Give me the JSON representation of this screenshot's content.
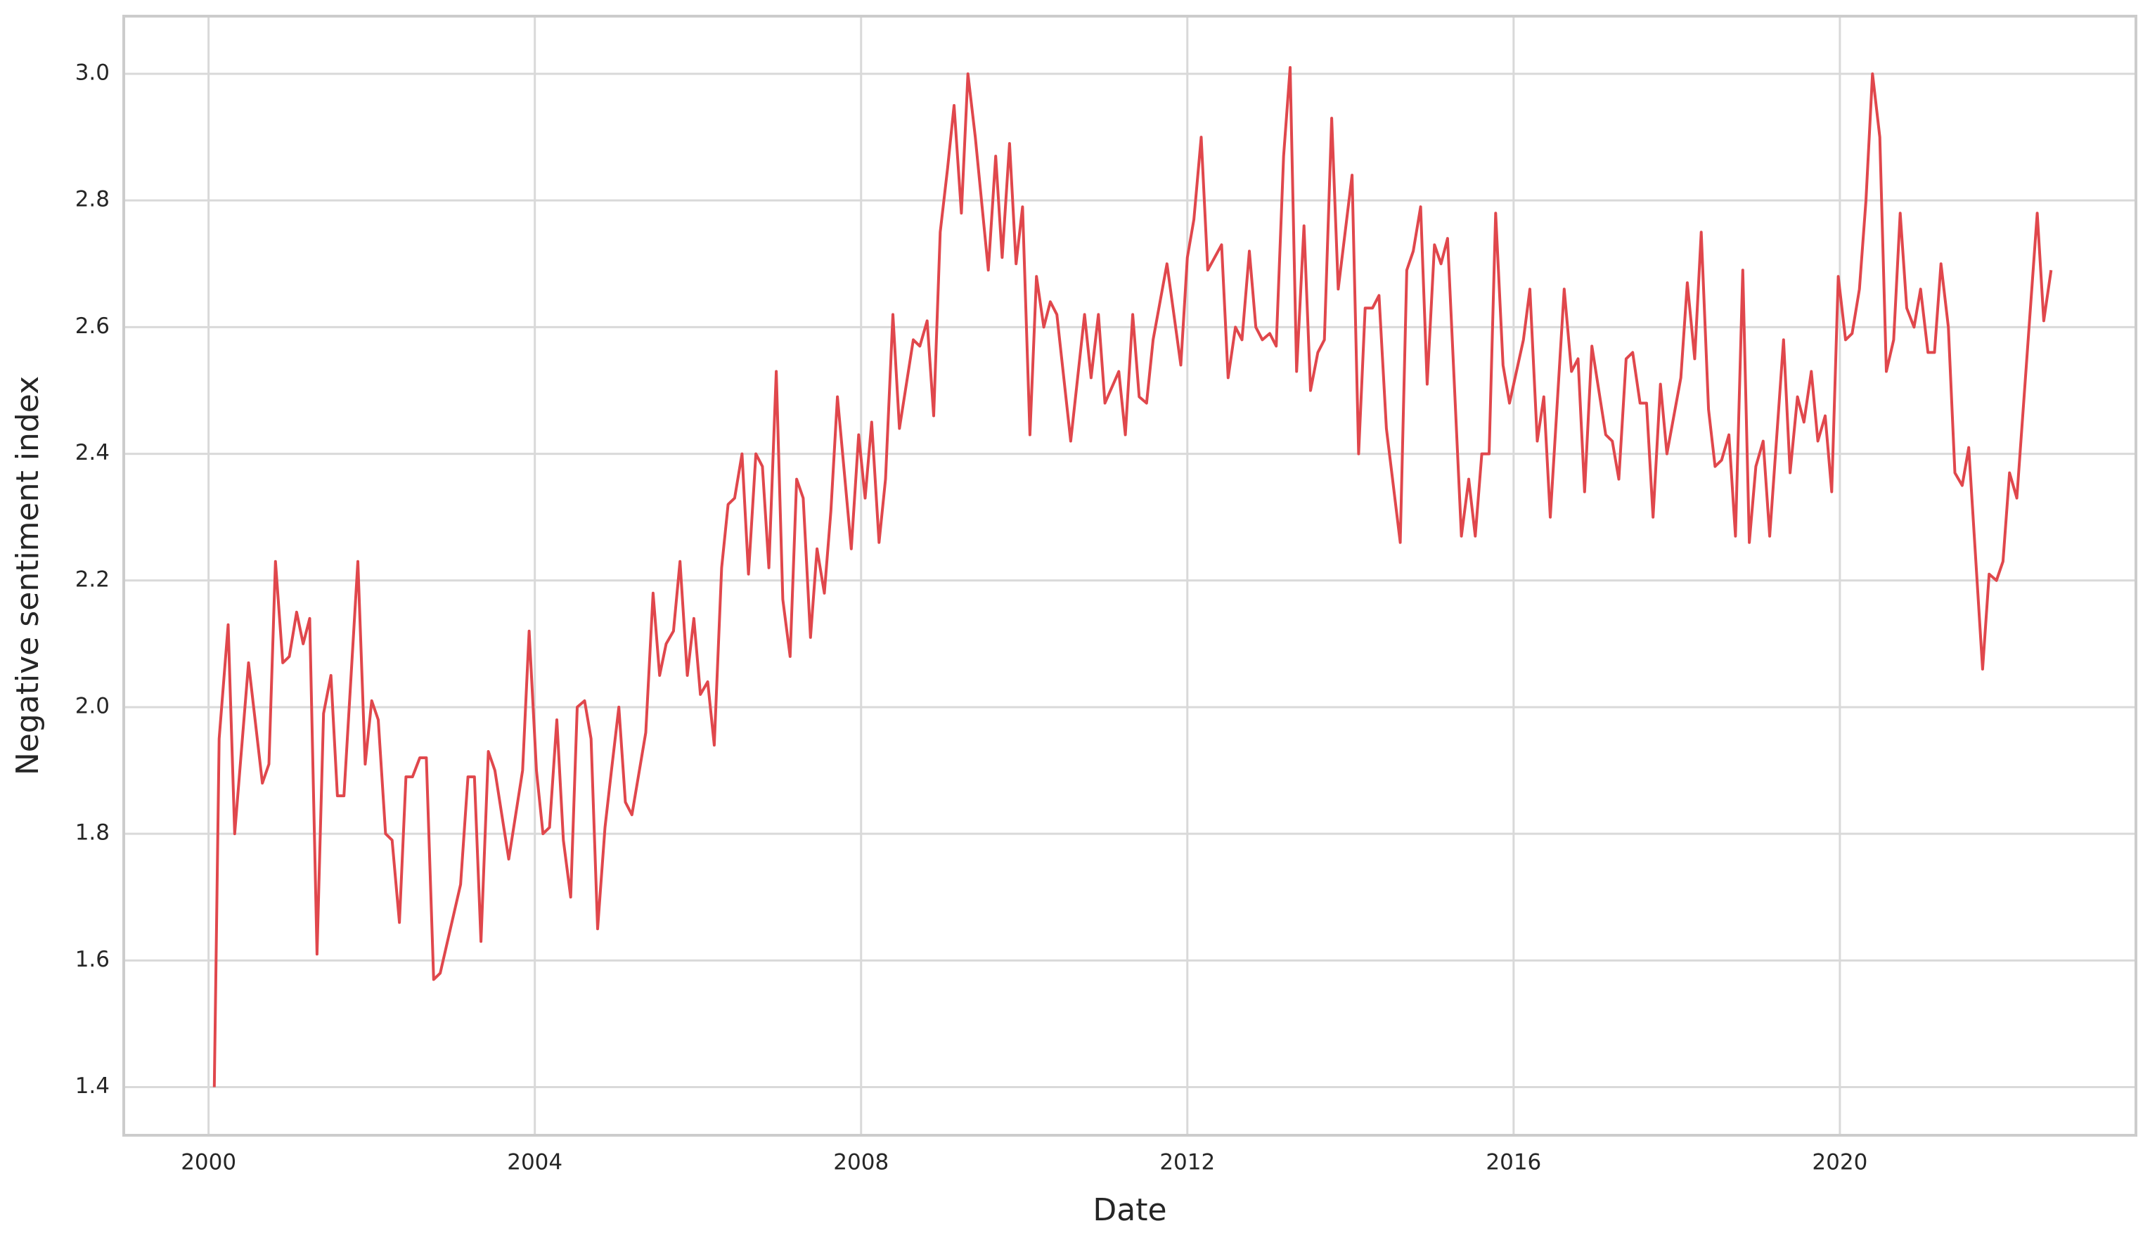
{
  "chart_data": {
    "type": "line",
    "x_label": "Date",
    "y_label": "Negative sentiment index",
    "color": "#e0474c",
    "grid": true,
    "xlim": [
      1998.96,
      2023.63
    ],
    "ylim": [
      1.324,
      3.091
    ],
    "xticks": [
      2000,
      2004,
      2008,
      2012,
      2016,
      2020
    ],
    "yticks": [
      1.4,
      1.6,
      1.8,
      {
        "value": 2.0,
        "label": "2.0"
      },
      2.2,
      2.4,
      2.6,
      2.8,
      {
        "value": 3.0,
        "label": "3.0"
      }
    ],
    "x": [
      2000.07,
      2000.13,
      2000.24,
      2000.32,
      2000.49,
      2000.66,
      2000.74,
      2000.82,
      2000.91,
      2000.99,
      2001.08,
      2001.16,
      2001.24,
      2001.33,
      2001.41,
      2001.5,
      2001.58,
      2001.66,
      2001.83,
      2001.92,
      2002.0,
      2002.08,
      2002.17,
      2002.25,
      2002.34,
      2002.42,
      2002.5,
      2002.59,
      2002.67,
      2002.76,
      2002.84,
      2003.09,
      2003.18,
      2003.26,
      2003.34,
      2003.43,
      2003.51,
      2003.68,
      2003.85,
      2003.93,
      2004.02,
      2004.1,
      2004.18,
      2004.27,
      2004.35,
      2004.44,
      2004.52,
      2004.61,
      2004.69,
      2004.77,
      2004.86,
      2004.94,
      2005.03,
      2005.11,
      2005.19,
      2005.36,
      2005.45,
      2005.53,
      2005.61,
      2005.7,
      2005.78,
      2005.87,
      2005.95,
      2006.03,
      2006.12,
      2006.2,
      2006.29,
      2006.37,
      2006.45,
      2006.54,
      2006.62,
      2006.71,
      2006.79,
      2006.87,
      2006.96,
      2007.04,
      2007.13,
      2007.21,
      2007.29,
      2007.38,
      2007.46,
      2007.55,
      2007.63,
      2007.71,
      2007.88,
      2007.97,
      2008.05,
      2008.13,
      2008.22,
      2008.3,
      2008.39,
      2008.47,
      2008.64,
      2008.72,
      2008.81,
      2008.89,
      2008.97,
      2009.06,
      2009.14,
      2009.23,
      2009.31,
      2009.4,
      2009.56,
      2009.65,
      2009.73,
      2009.82,
      2009.9,
      2009.98,
      2010.07,
      2010.15,
      2010.24,
      2010.32,
      2010.4,
      2010.57,
      2010.74,
      2010.82,
      2010.91,
      2010.99,
      2011.16,
      2011.24,
      2011.33,
      2011.41,
      2011.5,
      2011.58,
      2011.75,
      2011.92,
      2012.0,
      2012.08,
      2012.17,
      2012.25,
      2012.42,
      2012.5,
      2012.59,
      2012.67,
      2012.76,
      2012.84,
      2012.92,
      2013.01,
      2013.09,
      2013.18,
      2013.26,
      2013.34,
      2013.43,
      2013.51,
      2013.6,
      2013.68,
      2013.77,
      2013.85,
      2014.02,
      2014.1,
      2014.18,
      2014.27,
      2014.35,
      2014.44,
      2014.61,
      2014.69,
      2014.77,
      2014.86,
      2014.94,
      2015.03,
      2015.11,
      2015.19,
      2015.36,
      2015.45,
      2015.53,
      2015.61,
      2015.7,
      2015.78,
      2015.87,
      2015.95,
      2016.12,
      2016.2,
      2016.29,
      2016.37,
      2016.45,
      2016.62,
      2016.71,
      2016.79,
      2016.87,
      2016.96,
      2017.13,
      2017.21,
      2017.29,
      2017.38,
      2017.46,
      2017.55,
      2017.63,
      2017.71,
      2017.8,
      2017.88,
      2018.05,
      2018.13,
      2018.22,
      2018.3,
      2018.39,
      2018.47,
      2018.55,
      2018.64,
      2018.72,
      2018.81,
      2018.89,
      2018.97,
      2019.06,
      2019.14,
      2019.31,
      2019.39,
      2019.48,
      2019.56,
      2019.65,
      2019.73,
      2019.82,
      2019.9,
      2019.98,
      2020.07,
      2020.15,
      2020.24,
      2020.32,
      2020.4,
      2020.49,
      2020.57,
      2020.66,
      2020.74,
      2020.82,
      2020.91,
      2020.99,
      2021.08,
      2021.16,
      2021.24,
      2021.33,
      2021.41,
      2021.5,
      2021.58,
      2021.75,
      2021.83,
      2021.92,
      2022.0,
      2022.08,
      2022.17,
      2022.42,
      2022.5,
      2022.59
    ],
    "values": [
      1.4,
      1.95,
      2.13,
      1.8,
      2.07,
      1.88,
      1.91,
      2.23,
      2.07,
      2.08,
      2.15,
      2.1,
      2.14,
      1.61,
      1.99,
      2.05,
      1.86,
      1.86,
      2.23,
      1.91,
      2.01,
      1.98,
      1.8,
      1.79,
      1.66,
      1.89,
      1.89,
      1.92,
      1.92,
      1.57,
      1.58,
      1.72,
      1.89,
      1.89,
      1.63,
      1.93,
      1.9,
      1.76,
      1.9,
      2.12,
      1.9,
      1.8,
      1.81,
      1.98,
      1.79,
      1.7,
      2.0,
      2.01,
      1.95,
      1.65,
      1.81,
      1.9,
      2.0,
      1.85,
      1.83,
      1.96,
      2.18,
      2.05,
      2.1,
      2.12,
      2.23,
      2.05,
      2.14,
      2.02,
      2.04,
      1.94,
      2.22,
      2.32,
      2.33,
      2.4,
      2.21,
      2.4,
      2.38,
      2.22,
      2.53,
      2.17,
      2.08,
      2.36,
      2.33,
      2.11,
      2.25,
      2.18,
      2.31,
      2.49,
      2.25,
      2.43,
      2.33,
      2.45,
      2.26,
      2.36,
      2.62,
      2.44,
      2.58,
      2.57,
      2.61,
      2.46,
      2.75,
      2.85,
      2.95,
      2.78,
      3.0,
      2.9,
      2.69,
      2.87,
      2.71,
      2.89,
      2.7,
      2.79,
      2.43,
      2.68,
      2.6,
      2.64,
      2.62,
      2.42,
      2.62,
      2.52,
      2.62,
      2.48,
      2.53,
      2.43,
      2.62,
      2.49,
      2.48,
      2.58,
      2.7,
      2.54,
      2.71,
      2.77,
      2.9,
      2.69,
      2.73,
      2.52,
      2.6,
      2.58,
      2.72,
      2.6,
      2.58,
      2.59,
      2.57,
      2.87,
      3.01,
      2.53,
      2.76,
      2.5,
      2.56,
      2.58,
      2.93,
      2.66,
      2.84,
      2.4,
      2.63,
      2.63,
      2.65,
      2.44,
      2.26,
      2.69,
      2.72,
      2.79,
      2.51,
      2.73,
      2.7,
      2.74,
      2.27,
      2.36,
      2.27,
      2.4,
      2.4,
      2.78,
      2.54,
      2.48,
      2.58,
      2.66,
      2.42,
      2.49,
      2.3,
      2.66,
      2.53,
      2.55,
      2.34,
      2.57,
      2.43,
      2.42,
      2.36,
      2.55,
      2.56,
      2.48,
      2.48,
      2.3,
      2.51,
      2.4,
      2.52,
      2.67,
      2.55,
      2.75,
      2.47,
      2.38,
      2.39,
      2.43,
      2.27,
      2.69,
      2.26,
      2.38,
      2.42,
      2.27,
      2.58,
      2.37,
      2.49,
      2.45,
      2.53,
      2.42,
      2.46,
      2.34,
      2.68,
      2.58,
      2.59,
      2.66,
      2.8,
      3.0,
      2.9,
      2.53,
      2.58,
      2.78,
      2.63,
      2.6,
      2.66,
      2.56,
      2.56,
      2.7,
      2.6,
      2.37,
      2.35,
      2.41,
      2.06,
      2.21,
      2.2,
      2.23,
      2.37,
      2.33,
      2.78,
      2.61,
      2.69
    ]
  }
}
